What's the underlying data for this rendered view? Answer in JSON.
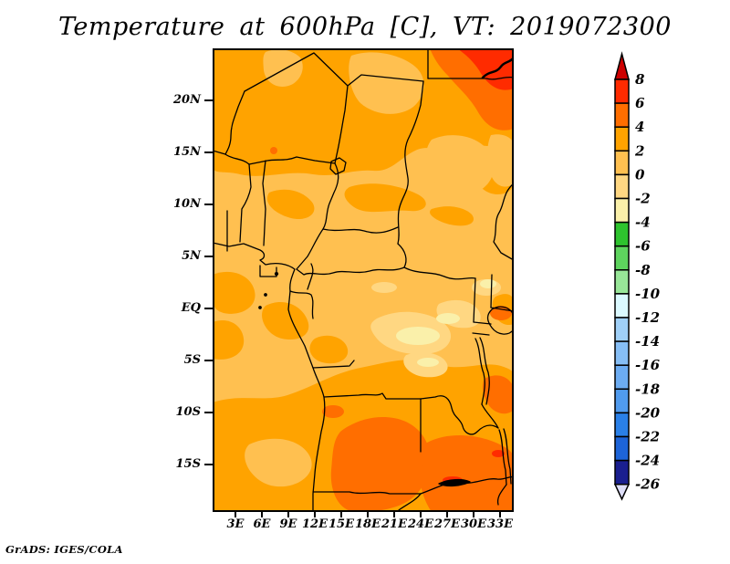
{
  "title": "Temperature at 600hPa [C], VT: 2019072300",
  "credit": "GrADS: IGES/COLA",
  "axes": {
    "lat_labels": [
      "20N",
      "15N",
      "10N",
      "5N",
      "EQ",
      "5S",
      "10S",
      "15S"
    ],
    "lon_labels": [
      "3E",
      "6E",
      "9E",
      "12E",
      "15E",
      "18E",
      "21E",
      "24E",
      "27E",
      "30E",
      "33E"
    ]
  },
  "colorbar": {
    "tick_labels": [
      "8",
      "6",
      "4",
      "2",
      "0",
      "-2",
      "-4",
      "-6",
      "-8",
      "-10",
      "-12",
      "-14",
      "-16",
      "-18",
      "-20",
      "-22",
      "-24",
      "-26"
    ],
    "cell_colors_top_to_bottom": [
      "#FF2B00",
      "#FF6E00",
      "#FFA300",
      "#FFC050",
      "#FFD782",
      "#FAF0AA",
      "#2EC32E",
      "#5ED45E",
      "#98E698",
      "#DBF9FF",
      "#A0D0F8",
      "#86BEF5",
      "#6CACF2",
      "#509BEE",
      "#2A80E8",
      "#1D64D8",
      "#1A1F8F"
    ],
    "arrow_top_color": "#CD0000",
    "arrow_bottom_color": "#DEDEF8"
  },
  "map_palette": {
    "level_0_2": "#FFC050",
    "level_2_4": "#FFA300",
    "level_4_6": "#FF6E00",
    "level_6_8": "#FF2B00",
    "level_m2_0": "#FFD782",
    "level_m4_m2": "#FAF0AA",
    "border_color": "#000000"
  },
  "chart_data": {
    "type": "heatmap",
    "title": "Temperature at 600hPa [C], VT: 2019072300",
    "variable": "Temperature at 600 hPa",
    "units": "C",
    "valid_time": "2019072300",
    "x_ticks": [
      "3E",
      "6E",
      "9E",
      "12E",
      "15E",
      "18E",
      "21E",
      "24E",
      "27E",
      "30E",
      "33E"
    ],
    "y_ticks": [
      "20N",
      "15N",
      "10N",
      "5N",
      "EQ",
      "5S",
      "10S",
      "15S"
    ],
    "colorbar_levels": [
      8,
      6,
      4,
      2,
      0,
      -2,
      -4,
      -6,
      -8,
      -10,
      -12,
      -14,
      -16,
      -18,
      -20,
      -22,
      -24,
      -26
    ],
    "visible_value_range_on_map": [
      -4,
      8
    ],
    "notable_features": [
      "Warmest shading (6 to 8 C) in far northeast corner of domain (~28-34E, 22-25N)",
      "4 to 6 C band over Angola, Zambia and south-central Africa (~10-19S)",
      "4 to 6 C patches east and south of Lake Tanganyika",
      "Coolest shading (-4 to -2 C) small patches near 22-31E, 2-7S (Lake Victoria / Tanzania region)",
      "Most of the domain shaded 0 to 4 C",
      "Country borders and lakes (Chad, Victoria, Tanganyika, Malawi, Kariba) overlaid in black"
    ],
    "legend_position": "right",
    "grid": false
  }
}
